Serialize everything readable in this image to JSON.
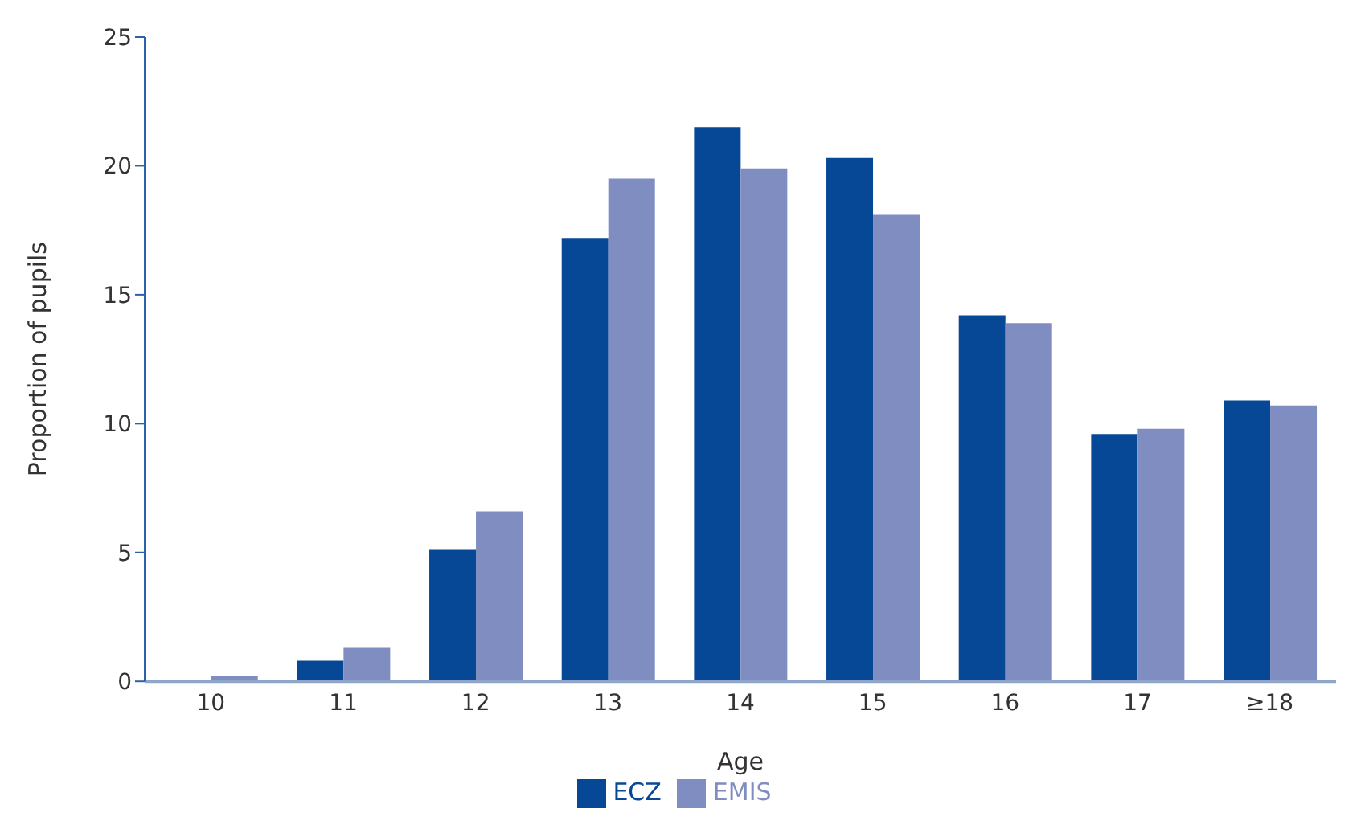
{
  "chart_data": {
    "type": "bar",
    "xlabel": "Age",
    "ylabel": "Proportion of pupils",
    "categories": [
      "10",
      "11",
      "12",
      "13",
      "14",
      "15",
      "16",
      "17",
      "≥18"
    ],
    "series": [
      {
        "name": "ECZ",
        "color": "#074896",
        "values": [
          0,
          0.8,
          5.1,
          17.2,
          21.5,
          20.3,
          14.2,
          9.6,
          10.9
        ]
      },
      {
        "name": "EMIS",
        "color": "#808dc0",
        "values": [
          0.2,
          1.3,
          6.6,
          19.5,
          19.9,
          18.1,
          13.9,
          9.8,
          10.7
        ]
      }
    ],
    "ylim": [
      0,
      25
    ],
    "yticks": [
      0,
      5,
      10,
      15,
      20,
      25
    ],
    "grid": false,
    "legend": "bottom"
  }
}
